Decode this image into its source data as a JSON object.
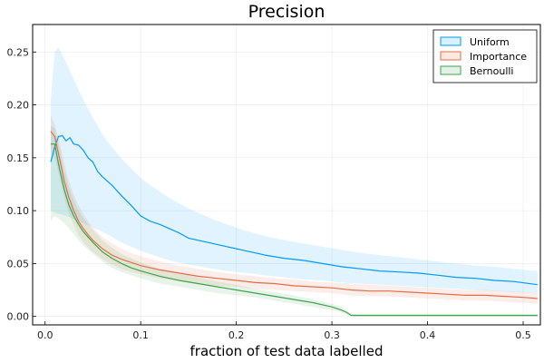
{
  "chart_data": {
    "type": "line",
    "title": "Precision",
    "xlabel": "fraction of test data labelled",
    "ylabel": "",
    "xlim": [
      -0.013,
      0.518
    ],
    "ylim": [
      -0.008,
      0.276
    ],
    "x_ticks": [
      0.0,
      0.1,
      0.2,
      0.3,
      0.4,
      0.5
    ],
    "x_tick_labels": [
      "0.0",
      "0.1",
      "0.2",
      "0.3",
      "0.4",
      "0.5"
    ],
    "y_ticks": [
      0.0,
      0.05,
      0.1,
      0.15,
      0.2,
      0.25
    ],
    "y_tick_labels": [
      "0.00",
      "0.05",
      "0.10",
      "0.15",
      "0.20",
      "0.25"
    ],
    "grid": true,
    "legend_position": "top-right",
    "series": [
      {
        "name": "Uniform",
        "color": "#009AFA",
        "x": [
          0.006,
          0.01,
          0.014,
          0.018,
          0.022,
          0.026,
          0.03,
          0.035,
          0.04,
          0.045,
          0.05,
          0.055,
          0.06,
          0.07,
          0.08,
          0.09,
          0.1,
          0.11,
          0.12,
          0.13,
          0.14,
          0.15,
          0.17,
          0.19,
          0.21,
          0.23,
          0.25,
          0.27,
          0.29,
          0.31,
          0.33,
          0.35,
          0.37,
          0.39,
          0.41,
          0.43,
          0.45,
          0.47,
          0.49,
          0.515
        ],
        "y": [
          0.146,
          0.16,
          0.17,
          0.171,
          0.166,
          0.169,
          0.163,
          0.162,
          0.157,
          0.15,
          0.146,
          0.137,
          0.132,
          0.124,
          0.114,
          0.105,
          0.095,
          0.09,
          0.087,
          0.083,
          0.079,
          0.074,
          0.07,
          0.066,
          0.062,
          0.058,
          0.055,
          0.053,
          0.05,
          0.047,
          0.045,
          0.043,
          0.042,
          0.041,
          0.039,
          0.037,
          0.036,
          0.034,
          0.033,
          0.03
        ],
        "band_upper": [
          0.205,
          0.25,
          0.254,
          0.248,
          0.24,
          0.232,
          0.224,
          0.214,
          0.205,
          0.196,
          0.188,
          0.18,
          0.172,
          0.16,
          0.149,
          0.14,
          0.131,
          0.124,
          0.118,
          0.112,
          0.107,
          0.102,
          0.094,
          0.087,
          0.081,
          0.076,
          0.072,
          0.069,
          0.066,
          0.063,
          0.06,
          0.058,
          0.056,
          0.054,
          0.052,
          0.05,
          0.048,
          0.047,
          0.045,
          0.043
        ],
        "band_lower": [
          0.1,
          0.098,
          0.097,
          0.096,
          0.095,
          0.094,
          0.092,
          0.09,
          0.088,
          0.086,
          0.084,
          0.082,
          0.08,
          0.075,
          0.07,
          0.066,
          0.062,
          0.059,
          0.056,
          0.053,
          0.051,
          0.049,
          0.046,
          0.043,
          0.041,
          0.039,
          0.037,
          0.035,
          0.034,
          0.032,
          0.031,
          0.03,
          0.029,
          0.028,
          0.027,
          0.026,
          0.025,
          0.024,
          0.023,
          0.022
        ]
      },
      {
        "name": "Importance",
        "color": "#E26F46",
        "x": [
          0.006,
          0.01,
          0.015,
          0.02,
          0.025,
          0.03,
          0.035,
          0.04,
          0.045,
          0.05,
          0.06,
          0.07,
          0.08,
          0.09,
          0.1,
          0.12,
          0.14,
          0.16,
          0.18,
          0.2,
          0.22,
          0.24,
          0.26,
          0.28,
          0.3,
          0.32,
          0.34,
          0.36,
          0.38,
          0.4,
          0.42,
          0.44,
          0.46,
          0.48,
          0.5,
          0.515
        ],
        "y": [
          0.175,
          0.17,
          0.15,
          0.128,
          0.112,
          0.1,
          0.09,
          0.083,
          0.077,
          0.072,
          0.064,
          0.058,
          0.054,
          0.051,
          0.048,
          0.044,
          0.041,
          0.038,
          0.036,
          0.034,
          0.032,
          0.031,
          0.029,
          0.028,
          0.027,
          0.025,
          0.024,
          0.024,
          0.023,
          0.022,
          0.021,
          0.02,
          0.02,
          0.019,
          0.018,
          0.017
        ],
        "band_upper": [
          0.19,
          0.182,
          0.165,
          0.145,
          0.128,
          0.115,
          0.105,
          0.097,
          0.09,
          0.084,
          0.075,
          0.069,
          0.064,
          0.06,
          0.057,
          0.052,
          0.048,
          0.045,
          0.042,
          0.04,
          0.038,
          0.036,
          0.035,
          0.033,
          0.032,
          0.031,
          0.03,
          0.029,
          0.028,
          0.027,
          0.026,
          0.025,
          0.025,
          0.024,
          0.023,
          0.022
        ],
        "band_lower": [
          0.155,
          0.15,
          0.132,
          0.112,
          0.097,
          0.086,
          0.077,
          0.07,
          0.065,
          0.061,
          0.054,
          0.049,
          0.045,
          0.042,
          0.04,
          0.036,
          0.034,
          0.031,
          0.029,
          0.028,
          0.026,
          0.025,
          0.024,
          0.023,
          0.022,
          0.02,
          0.019,
          0.019,
          0.018,
          0.017,
          0.016,
          0.015,
          0.015,
          0.014,
          0.013,
          0.012
        ]
      },
      {
        "name": "Bernoulli",
        "color": "#3EA44E",
        "x": [
          0.006,
          0.01,
          0.015,
          0.02,
          0.025,
          0.03,
          0.035,
          0.04,
          0.045,
          0.05,
          0.06,
          0.07,
          0.08,
          0.09,
          0.1,
          0.12,
          0.14,
          0.16,
          0.18,
          0.2,
          0.22,
          0.24,
          0.26,
          0.28,
          0.3,
          0.31,
          0.315,
          0.32,
          0.33,
          0.36,
          0.4,
          0.45,
          0.5,
          0.515
        ],
        "y": [
          0.163,
          0.163,
          0.14,
          0.12,
          0.105,
          0.095,
          0.087,
          0.08,
          0.075,
          0.07,
          0.061,
          0.055,
          0.05,
          0.046,
          0.043,
          0.038,
          0.034,
          0.031,
          0.028,
          0.025,
          0.022,
          0.019,
          0.016,
          0.013,
          0.009,
          0.006,
          0.004,
          0.001,
          0.001,
          0.001,
          0.001,
          0.001,
          0.001,
          0.001
        ],
        "band_upper": [
          0.18,
          0.178,
          0.16,
          0.138,
          0.122,
          0.11,
          0.1,
          0.093,
          0.087,
          0.082,
          0.072,
          0.065,
          0.059,
          0.055,
          0.051,
          0.045,
          0.041,
          0.037,
          0.033,
          0.03,
          0.026,
          0.023,
          0.02,
          0.016,
          0.012,
          0.009,
          0.006,
          0.002,
          0.002,
          0.002,
          0.002,
          0.002,
          0.002,
          0.002
        ],
        "band_lower": [
          0.09,
          0.095,
          0.092,
          0.088,
          0.083,
          0.078,
          0.072,
          0.067,
          0.063,
          0.059,
          0.052,
          0.046,
          0.042,
          0.039,
          0.036,
          0.031,
          0.028,
          0.025,
          0.022,
          0.02,
          0.018,
          0.015,
          0.012,
          0.009,
          0.006,
          0.004,
          0.002,
          0.0,
          0.0,
          0.0,
          0.0,
          0.0,
          0.0,
          0.0
        ]
      }
    ]
  }
}
